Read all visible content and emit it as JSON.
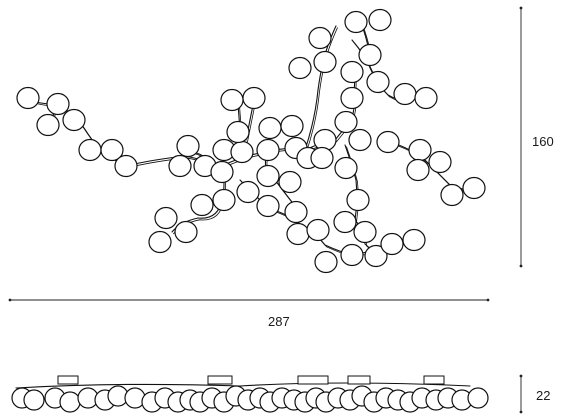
{
  "dimensions": {
    "height_label": "160",
    "width_label": "287",
    "depth_label": "22"
  }
}
